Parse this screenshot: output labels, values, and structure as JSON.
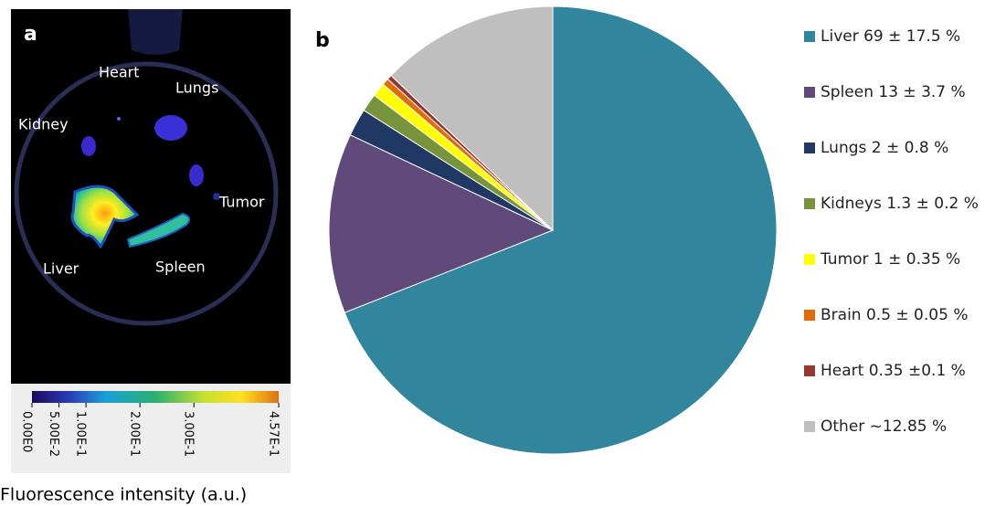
{
  "panel_a": {
    "label": "a",
    "organ_labels": [
      "Heart",
      "Lungs",
      "Kidney",
      "Tumor",
      "Liver",
      "Spleen"
    ],
    "colorbar": {
      "lim": [
        0,
        0.457
      ],
      "ticks": [
        {
          "value": 0,
          "label": "0.00E0"
        },
        {
          "value": 0.05,
          "label": "5.00E-2"
        },
        {
          "value": 0.1,
          "label": "1.00E-1"
        },
        {
          "value": 0.2,
          "label": "2.00E-1"
        },
        {
          "value": 0.3,
          "label": "3.00E-1"
        },
        {
          "value": 0.457,
          "label": "4.57E-1"
        }
      ],
      "label": "Fluorescence intensity (a.u.)"
    }
  },
  "chart_data": {
    "type": "pie",
    "panel_label": "b",
    "categories": [
      "Liver 69 ± 17.5 %",
      "Spleen 13 ± 3.7 %",
      "Lungs 2 ± 0.8 %",
      "Kidneys 1.3 ± 0.2 %",
      "Tumor 1 ± 0.35 %",
      "Brain 0.5 ± 0.05 %",
      "Heart 0.35 ±0.1 %",
      "Other ~12.85 %"
    ],
    "values": [
      69,
      13,
      2,
      1.3,
      1,
      0.5,
      0.35,
      12.85
    ],
    "colors": [
      "#31859c",
      "#604a7b",
      "#1f3864",
      "#77933c",
      "#ffff00",
      "#e36c09",
      "#953735",
      "#bfbfbf"
    ]
  }
}
